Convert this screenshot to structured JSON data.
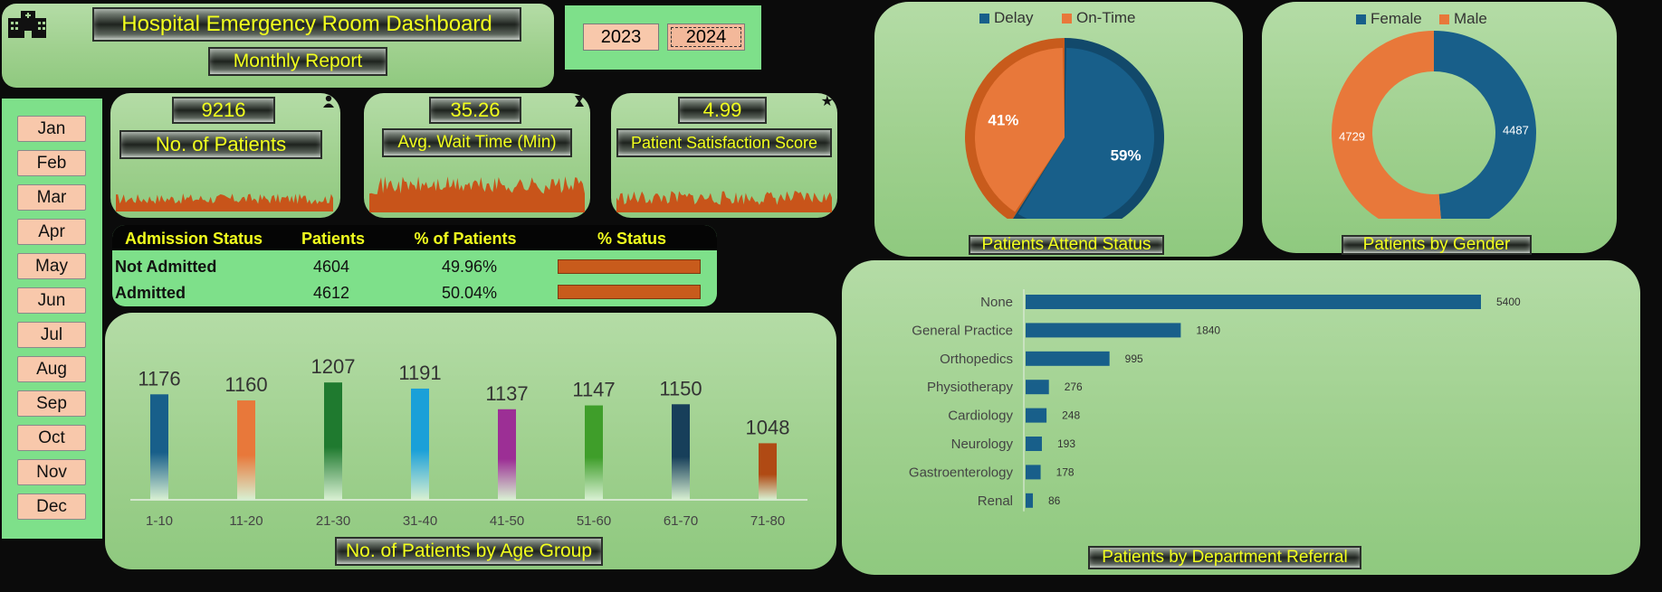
{
  "header": {
    "title": "Hospital Emergency Room Dashboard",
    "subtitle": "Monthly Report",
    "logo_icon": "hospital-icon"
  },
  "years": {
    "items": [
      "2023",
      "2024"
    ],
    "selected": "2024"
  },
  "months": [
    "Jan",
    "Feb",
    "Mar",
    "Apr",
    "May",
    "Jun",
    "Jul",
    "Aug",
    "Sep",
    "Oct",
    "Nov",
    "Dec"
  ],
  "kpis": {
    "patients": {
      "value": "9216",
      "label": "No. of Patients",
      "icon": "person-icon"
    },
    "wait": {
      "value": "35.26",
      "label": "Avg. Wait Time (Min)",
      "icon": "hourglass-icon"
    },
    "satisfaction": {
      "value": "4.99",
      "label": "Patient Satisfaction Score",
      "icon": "star-icon"
    }
  },
  "admission": {
    "headers": [
      "Admission Status",
      "Patients",
      "% of Patients",
      "% Status"
    ],
    "rows": [
      {
        "status": "Not Admitted",
        "patients": "4604",
        "pct": "49.96%",
        "fraction": 0.4996
      },
      {
        "status": "Admitted",
        "patients": "4612",
        "pct": "50.04%",
        "fraction": 0.5004
      }
    ]
  },
  "colors": {
    "panel": "#a6d495",
    "accent_yellow": "#f2ff1e",
    "blue": "#185f8a",
    "orange": "#e8783a",
    "button": "#f8c8ab",
    "spark": "#c8541a"
  },
  "chart_data": [
    {
      "type": "pie",
      "title": "Patients Attend Status",
      "legend": [
        "Delay",
        "On-Time"
      ],
      "legend_position": "top",
      "values": [
        59,
        41
      ],
      "labels": [
        "59%",
        "41%"
      ]
    },
    {
      "type": "pie",
      "title": "Patients by Gender",
      "legend": [
        "Female",
        "Male"
      ],
      "legend_position": "top",
      "values": [
        4487,
        4729
      ],
      "labels": [
        "4487",
        "4729"
      ]
    },
    {
      "type": "bar",
      "title": "No. of Patients by Age Group",
      "categories": [
        "1-10",
        "11-20",
        "21-30",
        "31-40",
        "41-50",
        "51-60",
        "61-70",
        "71-80"
      ],
      "values": [
        1176,
        1160,
        1207,
        1191,
        1137,
        1147,
        1150,
        1048
      ],
      "colors": [
        "#185f8a",
        "#e8783a",
        "#1f7a2f",
        "#1aa0d8",
        "#9c2f95",
        "#3f9e2a",
        "#173f5a",
        "#b04a14"
      ],
      "ylim": [
        900,
        1250
      ],
      "grid": false
    },
    {
      "type": "bar",
      "orientation": "horizontal",
      "title": "Patients by Department Referral",
      "categories": [
        "None",
        "General Practice",
        "Orthopedics",
        "Physiotherapy",
        "Cardiology",
        "Neurology",
        "Gastroenterology",
        "Renal"
      ],
      "values": [
        5400,
        1840,
        995,
        276,
        248,
        193,
        178,
        86
      ],
      "grid": false
    }
  ]
}
